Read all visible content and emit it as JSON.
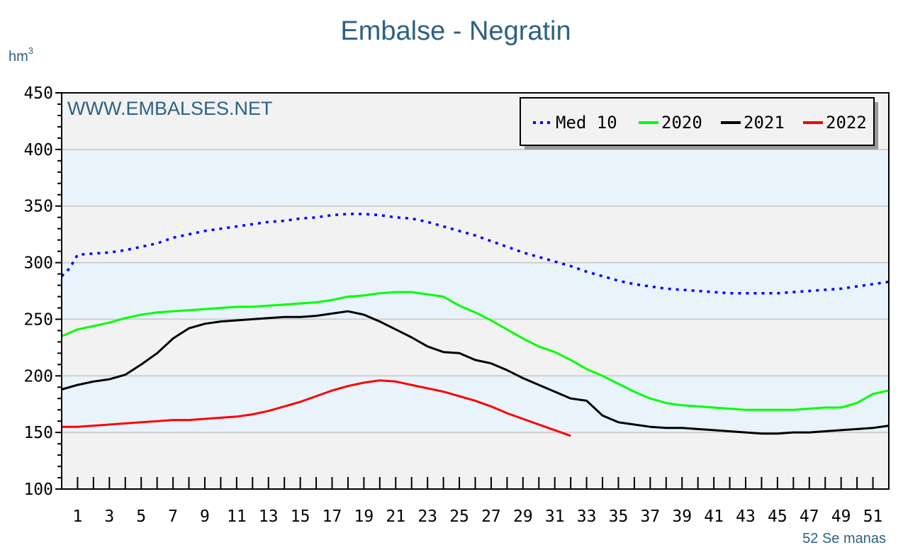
{
  "chart_data": {
    "type": "line",
    "title": "Embalse - Negratin",
    "ylabel": "hm",
    "ylabel_sup": "3",
    "xlabel": "52 Se manas",
    "watermark": "WWW.EMBALSES.NET",
    "ylim": [
      100,
      450
    ],
    "xlim": [
      0,
      52
    ],
    "yticks": [
      100,
      150,
      200,
      250,
      300,
      350,
      400,
      450
    ],
    "xticks": [
      1,
      3,
      5,
      7,
      9,
      11,
      13,
      15,
      17,
      19,
      21,
      23,
      25,
      27,
      29,
      31,
      33,
      35,
      37,
      39,
      41,
      43,
      45,
      47,
      49,
      51
    ],
    "legend_position": "top-right",
    "series": [
      {
        "name": "Med 10",
        "color": "#0000ff",
        "style": "dotted",
        "x": [
          0,
          0.5,
          1,
          2,
          3,
          4,
          5,
          6,
          7,
          8,
          9,
          10,
          11,
          12,
          13,
          14,
          15,
          16,
          17,
          18,
          19,
          20,
          21,
          22,
          23,
          24,
          25,
          26,
          27,
          28,
          29,
          30,
          31,
          32,
          33,
          34,
          35,
          36,
          37,
          38,
          39,
          40,
          41,
          42,
          43,
          44,
          45,
          46,
          47,
          48,
          49,
          50,
          51,
          52
        ],
        "values": [
          288,
          295,
          307,
          308,
          309,
          311,
          314,
          317,
          322,
          325,
          328,
          330,
          332,
          334,
          336,
          337,
          339,
          340,
          342,
          343,
          343,
          342,
          340,
          339,
          336,
          332,
          328,
          324,
          319,
          314,
          309,
          305,
          301,
          297,
          292,
          288,
          284,
          281,
          279,
          277,
          276,
          275,
          274,
          273,
          273,
          273,
          273,
          274,
          275,
          276,
          277,
          279,
          281,
          283
        ]
      },
      {
        "name": "2020",
        "color": "#00ff00",
        "style": "solid",
        "x": [
          0,
          1,
          2,
          3,
          4,
          5,
          6,
          7,
          8,
          9,
          10,
          11,
          12,
          13,
          14,
          15,
          16,
          17,
          18,
          19,
          20,
          21,
          22,
          23,
          24,
          25,
          26,
          27,
          28,
          29,
          30,
          31,
          32,
          33,
          34,
          35,
          36,
          37,
          38,
          39,
          40,
          41,
          42,
          43,
          44,
          45,
          46,
          47,
          48,
          49,
          50,
          51,
          52
        ],
        "values": [
          235,
          241,
          244,
          247,
          251,
          254,
          256,
          257,
          258,
          259,
          260,
          261,
          261,
          262,
          263,
          264,
          265,
          267,
          270,
          271,
          273,
          274,
          274,
          272,
          270,
          262,
          256,
          249,
          241,
          233,
          226,
          221,
          214,
          206,
          200,
          193,
          186,
          180,
          176,
          174,
          173,
          172,
          171,
          170,
          170,
          170,
          170,
          171,
          172,
          172,
          176,
          184,
          187
        ]
      },
      {
        "name": "2021",
        "color": "#000000",
        "style": "solid",
        "x": [
          0,
          1,
          2,
          3,
          4,
          5,
          6,
          7,
          8,
          9,
          10,
          11,
          12,
          13,
          14,
          15,
          16,
          17,
          18,
          19,
          20,
          21,
          22,
          23,
          24,
          25,
          26,
          27,
          28,
          29,
          30,
          31,
          32,
          33,
          34,
          35,
          36,
          37,
          38,
          39,
          40,
          41,
          42,
          43,
          44,
          45,
          46,
          47,
          48,
          49,
          50,
          51,
          52
        ],
        "values": [
          188,
          192,
          195,
          197,
          201,
          210,
          220,
          233,
          242,
          246,
          248,
          249,
          250,
          251,
          252,
          252,
          253,
          255,
          257,
          254,
          248,
          241,
          234,
          226,
          221,
          220,
          214,
          211,
          205,
          198,
          192,
          186,
          180,
          178,
          165,
          159,
          157,
          155,
          154,
          154,
          153,
          152,
          151,
          150,
          149,
          149,
          150,
          150,
          151,
          152,
          153,
          154,
          156
        ]
      },
      {
        "name": "2022",
        "color": "#ff0000",
        "style": "solid",
        "x": [
          0,
          1,
          2,
          3,
          4,
          5,
          6,
          7,
          8,
          9,
          10,
          11,
          12,
          13,
          14,
          15,
          16,
          17,
          18,
          19,
          20,
          21,
          22,
          23,
          24,
          25,
          26,
          27,
          28,
          29,
          30,
          31,
          32
        ],
        "values": [
          155,
          155,
          156,
          157,
          158,
          159,
          160,
          161,
          161,
          162,
          163,
          164,
          166,
          169,
          173,
          177,
          182,
          187,
          191,
          194,
          196,
          195,
          192,
          189,
          186,
          182,
          178,
          173,
          167,
          162,
          157,
          152,
          147
        ]
      }
    ]
  }
}
